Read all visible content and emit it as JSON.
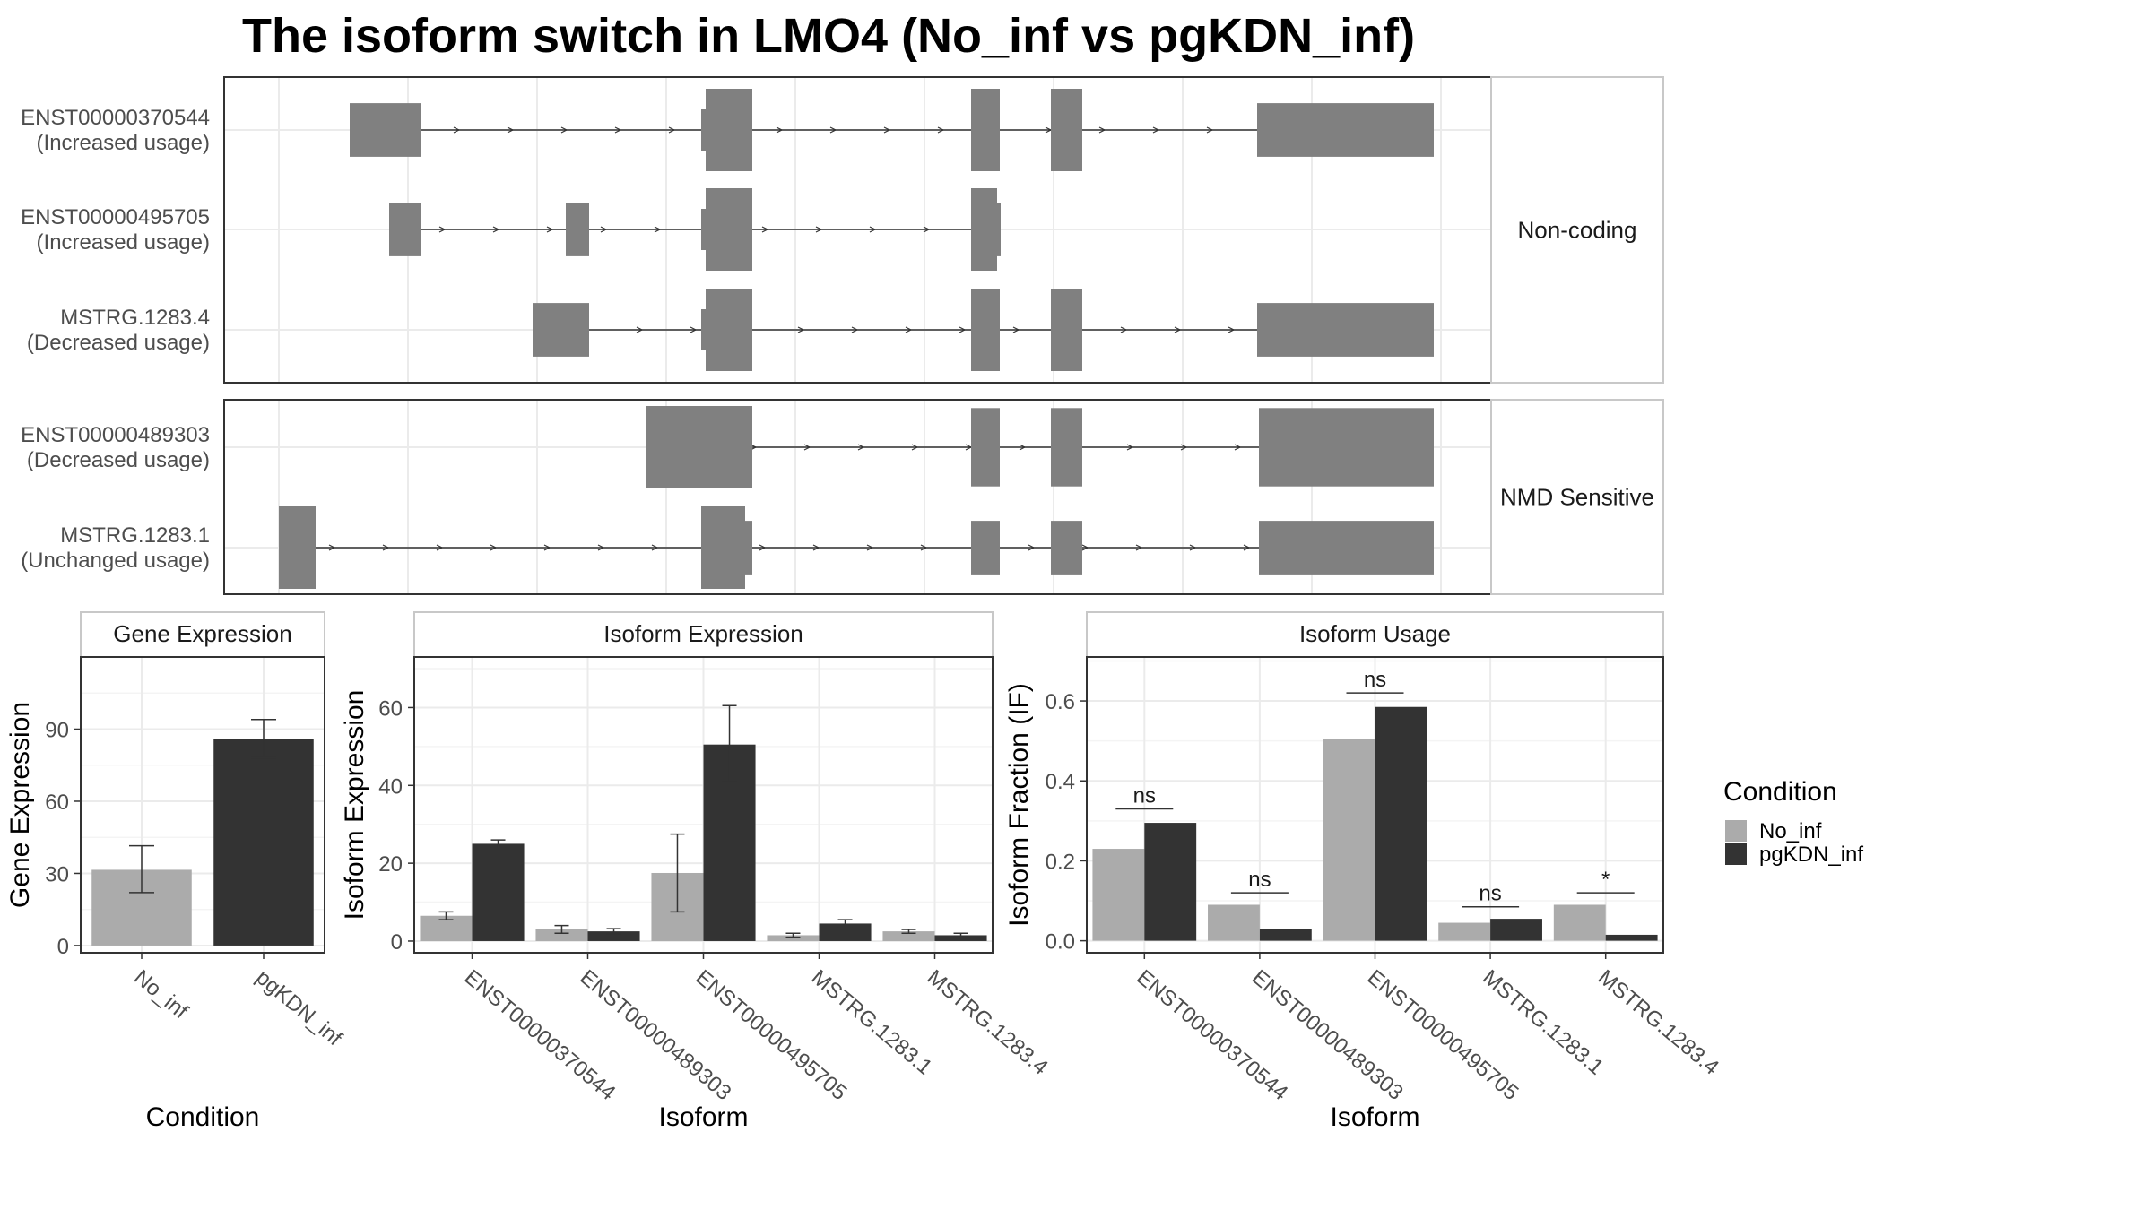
{
  "title": "The isoform switch in LMO4 (No_inf vs pgKDN_inf)",
  "colors": {
    "no_inf": "#ababab",
    "pgkdn_inf": "#333333",
    "exon": "#808080",
    "grid": "#ebebeb",
    "panel_border": "#333333",
    "strip_border": "#c8c8c8",
    "axis_text": "#4d4d4d"
  },
  "structure_panels": [
    {
      "strip_label": "Non-coding",
      "transcripts": [
        {
          "id": "ENST00000370544",
          "usage": "(Increased usage)"
        },
        {
          "id": "ENST00000495705",
          "usage": "(Increased usage)"
        },
        {
          "id": "MSTRG.1283.4",
          "usage": "(Decreased usage)"
        }
      ]
    },
    {
      "strip_label": "NMD Sensitive",
      "transcripts": [
        {
          "id": "ENST00000489303",
          "usage": "(Decreased usage)"
        },
        {
          "id": "MSTRG.1283.1",
          "usage": "(Unchanged usage)"
        }
      ]
    }
  ],
  "legend": {
    "title": "Condition",
    "items": [
      {
        "label": "No_inf",
        "color": "#ababab"
      },
      {
        "label": "pgKDN_inf",
        "color": "#333333"
      }
    ]
  },
  "chart_data": [
    {
      "type": "bar",
      "title": "Gene Expression",
      "xlabel": "Condition",
      "ylabel": "Gene Expression",
      "categories": [
        "No_inf",
        "pgKDN_inf"
      ],
      "values": [
        31.5,
        86
      ],
      "error_low": [
        22,
        78
      ],
      "error_high": [
        41.5,
        94
      ],
      "ylim": [
        -3,
        120
      ],
      "yticks": [
        0,
        30,
        60,
        90
      ]
    },
    {
      "type": "bar",
      "title": "Isoform Expression",
      "xlabel": "Isoform",
      "ylabel": "Isoform Expression",
      "categories": [
        "ENST00000370544",
        "ENST00000489303",
        "ENST00000495705",
        "MSTRG.1283.1",
        "MSTRG.1283.4"
      ],
      "series": [
        {
          "name": "No_inf",
          "values": [
            6.5,
            3,
            17.5,
            1.5,
            2.5
          ],
          "error_low": [
            5.5,
            2,
            7.5,
            1,
            2
          ],
          "error_high": [
            7.5,
            4,
            27.5,
            2,
            3
          ]
        },
        {
          "name": "pgKDN_inf",
          "values": [
            25,
            2.5,
            50.5,
            4.5,
            1.5
          ],
          "error_low": [
            24,
            1.8,
            41,
            3.5,
            1
          ],
          "error_high": [
            26,
            3.2,
            60.5,
            5.5,
            2
          ]
        }
      ],
      "ylim": [
        -3,
        73
      ],
      "yticks": [
        0,
        20,
        40,
        60
      ]
    },
    {
      "type": "bar",
      "title": "Isoform Usage",
      "xlabel": "Isoform",
      "ylabel": "Isoform Fraction (IF)",
      "categories": [
        "ENST00000370544",
        "ENST00000489303",
        "ENST00000495705",
        "MSTRG.1283.1",
        "MSTRG.1283.4"
      ],
      "series": [
        {
          "name": "No_inf",
          "values": [
            0.23,
            0.09,
            0.505,
            0.045,
            0.09
          ]
        },
        {
          "name": "pgKDN_inf",
          "values": [
            0.295,
            0.03,
            0.585,
            0.055,
            0.015
          ]
        }
      ],
      "significance": [
        "ns",
        "ns",
        "ns",
        "ns",
        "*"
      ],
      "sig_y": [
        0.33,
        0.12,
        0.62,
        0.085,
        0.12
      ],
      "ylim": [
        -0.03,
        0.71
      ],
      "yticks": [
        0.0,
        0.2,
        0.4,
        0.6
      ],
      "ytick_labels": [
        "0.0",
        "0.2",
        "0.4",
        "0.6"
      ]
    }
  ]
}
